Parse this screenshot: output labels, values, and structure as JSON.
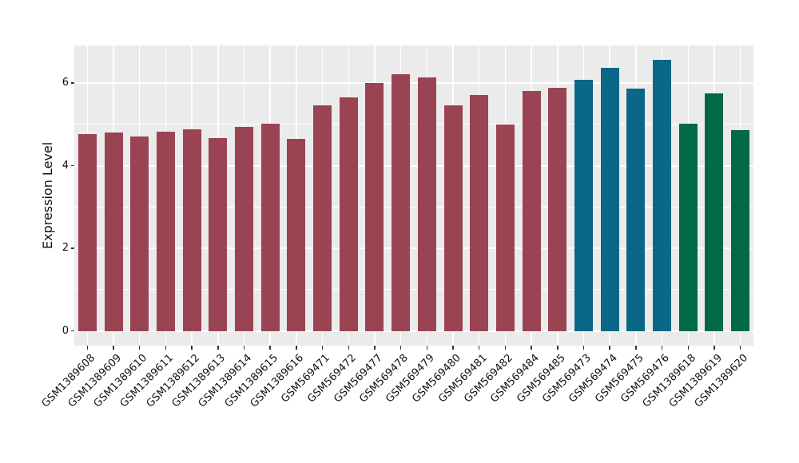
{
  "figure": {
    "background": "#FFFFFF",
    "panel_background": "#EBEBEB",
    "grid_color": "#FFFFFF",
    "tick_color": "#333333",
    "axis_text_color": "#111111"
  },
  "chart_data": {
    "type": "bar",
    "title": "",
    "xlabel": "",
    "ylabel": "Expression Level",
    "ylim": [
      -0.35,
      6.9
    ],
    "yticks": [
      0,
      2,
      4,
      6
    ],
    "yminorticks": [
      1,
      3,
      5
    ],
    "grid": "white major+minor horizontal lines and vertical lines at bar centers on gray panel (ggplot style)",
    "legend_position": "none",
    "x_tick_rotation_deg": 45,
    "palette": {
      "maroon": "#9A4352",
      "teal": "#0A6786",
      "green": "#016945"
    },
    "categories": [
      "GSM1389608",
      "GSM1389609",
      "GSM1389610",
      "GSM1389611",
      "GSM1389612",
      "GSM1389613",
      "GSM1389614",
      "GSM1389615",
      "GSM1389616",
      "GSM569471",
      "GSM569472",
      "GSM569477",
      "GSM569478",
      "GSM569479",
      "GSM569480",
      "GSM569481",
      "GSM569482",
      "GSM569484",
      "GSM569485",
      "GSM569473",
      "GSM569474",
      "GSM569475",
      "GSM569476",
      "GSM1389618",
      "GSM1389619",
      "GSM1389620"
    ],
    "values": [
      4.77,
      4.8,
      4.71,
      4.82,
      4.88,
      4.67,
      4.95,
      5.01,
      4.66,
      5.47,
      5.66,
      6.0,
      6.21,
      6.13,
      5.46,
      5.71,
      4.99,
      5.82,
      5.89,
      6.08,
      6.38,
      5.87,
      6.57,
      5.02,
      5.76,
      4.87
    ],
    "groups": [
      "maroon",
      "maroon",
      "maroon",
      "maroon",
      "maroon",
      "maroon",
      "maroon",
      "maroon",
      "maroon",
      "maroon",
      "maroon",
      "maroon",
      "maroon",
      "maroon",
      "maroon",
      "maroon",
      "maroon",
      "maroon",
      "maroon",
      "teal",
      "teal",
      "teal",
      "teal",
      "green",
      "green",
      "green"
    ]
  }
}
